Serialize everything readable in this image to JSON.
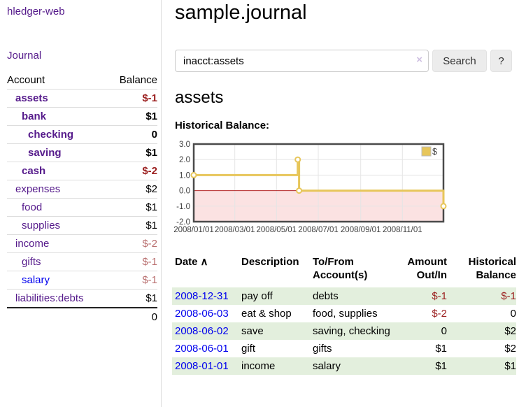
{
  "colors": {
    "link_visited": "#551A8B",
    "link_unvisited": "#0000EE",
    "negative_strong": "#9b1f1f",
    "negative_soft": "#b96f6f",
    "row_shade_green": "#e3efdd",
    "chart_line_gold": "#E7C65A",
    "chart_zero_line": "#b22222",
    "chart_negative_fill": "#fbe2e2",
    "chart_border": "#4a4a4a"
  },
  "sidebar": {
    "brand": "hledger-web",
    "journal_link": "Journal",
    "accounts_table": {
      "headers": [
        "Account",
        "Balance"
      ],
      "rows": [
        {
          "name": "assets",
          "depth": 1,
          "bold": true,
          "link": "visited",
          "balance": "$-1",
          "balance_class": "neg"
        },
        {
          "name": "bank",
          "depth": 2,
          "bold": true,
          "link": "visited",
          "balance": "$1",
          "balance_class": "plain"
        },
        {
          "name": "checking",
          "depth": 3,
          "bold": true,
          "link": "visited",
          "balance": "0",
          "balance_class": "plain"
        },
        {
          "name": "saving",
          "depth": 3,
          "bold": true,
          "link": "visited",
          "balance": "$1",
          "balance_class": "plain"
        },
        {
          "name": "cash",
          "depth": 2,
          "bold": true,
          "link": "visited",
          "balance": "$-2",
          "balance_class": "neg"
        },
        {
          "name": "expenses",
          "depth": 1,
          "bold": false,
          "link": "visited",
          "balance": "$2",
          "balance_class": "plain"
        },
        {
          "name": "food",
          "depth": 2,
          "bold": false,
          "link": "visited",
          "balance": "$1",
          "balance_class": "plain"
        },
        {
          "name": "supplies",
          "depth": 2,
          "bold": false,
          "link": "visited",
          "balance": "$1",
          "balance_class": "plain"
        },
        {
          "name": "income",
          "depth": 1,
          "bold": false,
          "link": "visited",
          "balance": "$-2",
          "balance_class": "soft"
        },
        {
          "name": "gifts",
          "depth": 2,
          "bold": false,
          "link": "visited",
          "balance": "$-1",
          "balance_class": "soft"
        },
        {
          "name": "salary",
          "depth": 2,
          "bold": false,
          "link": "unvisited",
          "balance": "$-1",
          "balance_class": "soft"
        },
        {
          "name": "liabilities:debts",
          "depth": 1,
          "bold": false,
          "link": "visited",
          "balance": "$1",
          "balance_class": "plain"
        }
      ],
      "total": "0"
    }
  },
  "main": {
    "title": "sample.journal",
    "search": {
      "value": "inacct:assets",
      "clear_icon": "×",
      "search_button": "Search",
      "help_button": "?"
    },
    "account_heading": "assets",
    "chart_label": "Historical Balance:"
  },
  "chart_data": {
    "type": "line",
    "title": "Historical Balance of assets",
    "step": true,
    "series": [
      {
        "name": "$",
        "dates": [
          "2008-01-01",
          "2008-06-01",
          "2008-06-03",
          "2008-12-31"
        ],
        "values": [
          1,
          2,
          0,
          -1
        ],
        "points_day_value": [
          [
            0,
            1
          ],
          [
            152,
            2
          ],
          [
            154,
            0
          ],
          [
            365,
            -1
          ]
        ]
      }
    ],
    "x_ticks": [
      {
        "day": 0,
        "label": "2008/01/01"
      },
      {
        "day": 60,
        "label": "2008/03/01"
      },
      {
        "day": 121,
        "label": "2008/05/01"
      },
      {
        "day": 182,
        "label": "2008/07/01"
      },
      {
        "day": 244,
        "label": "2008/09/01"
      },
      {
        "day": 305,
        "label": "2008/11/01"
      }
    ],
    "y_ticks": [
      3.0,
      2.0,
      1.0,
      0.0,
      -1.0,
      -2.0
    ],
    "ylim": [
      -2,
      3
    ],
    "xlim_days": [
      0,
      365
    ],
    "legend": {
      "label": "$",
      "position": "top-right"
    },
    "grid": true
  },
  "transactions_table": {
    "headers": [
      {
        "label": "Date",
        "sort_indicator": "∧",
        "align": "left"
      },
      {
        "label": "Description",
        "align": "left"
      },
      {
        "label": "To/From Account(s)",
        "align": "left"
      },
      {
        "label": "Amount Out/In",
        "align": "right"
      },
      {
        "label": "Historical Balance",
        "align": "right"
      }
    ],
    "rows": [
      {
        "date": "2008-12-31",
        "description": "pay off",
        "accounts": "debts",
        "amount": "$-1",
        "amount_class": "neg",
        "balance": "$-1",
        "balance_class": "neg",
        "shaded": true
      },
      {
        "date": "2008-06-03",
        "description": "eat & shop",
        "accounts": "food, supplies",
        "amount": "$-2",
        "amount_class": "neg",
        "balance": "0",
        "balance_class": "plain",
        "shaded": false
      },
      {
        "date": "2008-06-02",
        "description": "save",
        "accounts": "saving, checking",
        "amount": "0",
        "amount_class": "plain",
        "balance": "$2",
        "balance_class": "plain",
        "shaded": true
      },
      {
        "date": "2008-06-01",
        "description": "gift",
        "accounts": "gifts",
        "amount": "$1",
        "amount_class": "plain",
        "balance": "$2",
        "balance_class": "plain",
        "shaded": false
      },
      {
        "date": "2008-01-01",
        "description": "income",
        "accounts": "salary",
        "amount": "$1",
        "amount_class": "plain",
        "balance": "$1",
        "balance_class": "plain",
        "shaded": true
      }
    ]
  }
}
